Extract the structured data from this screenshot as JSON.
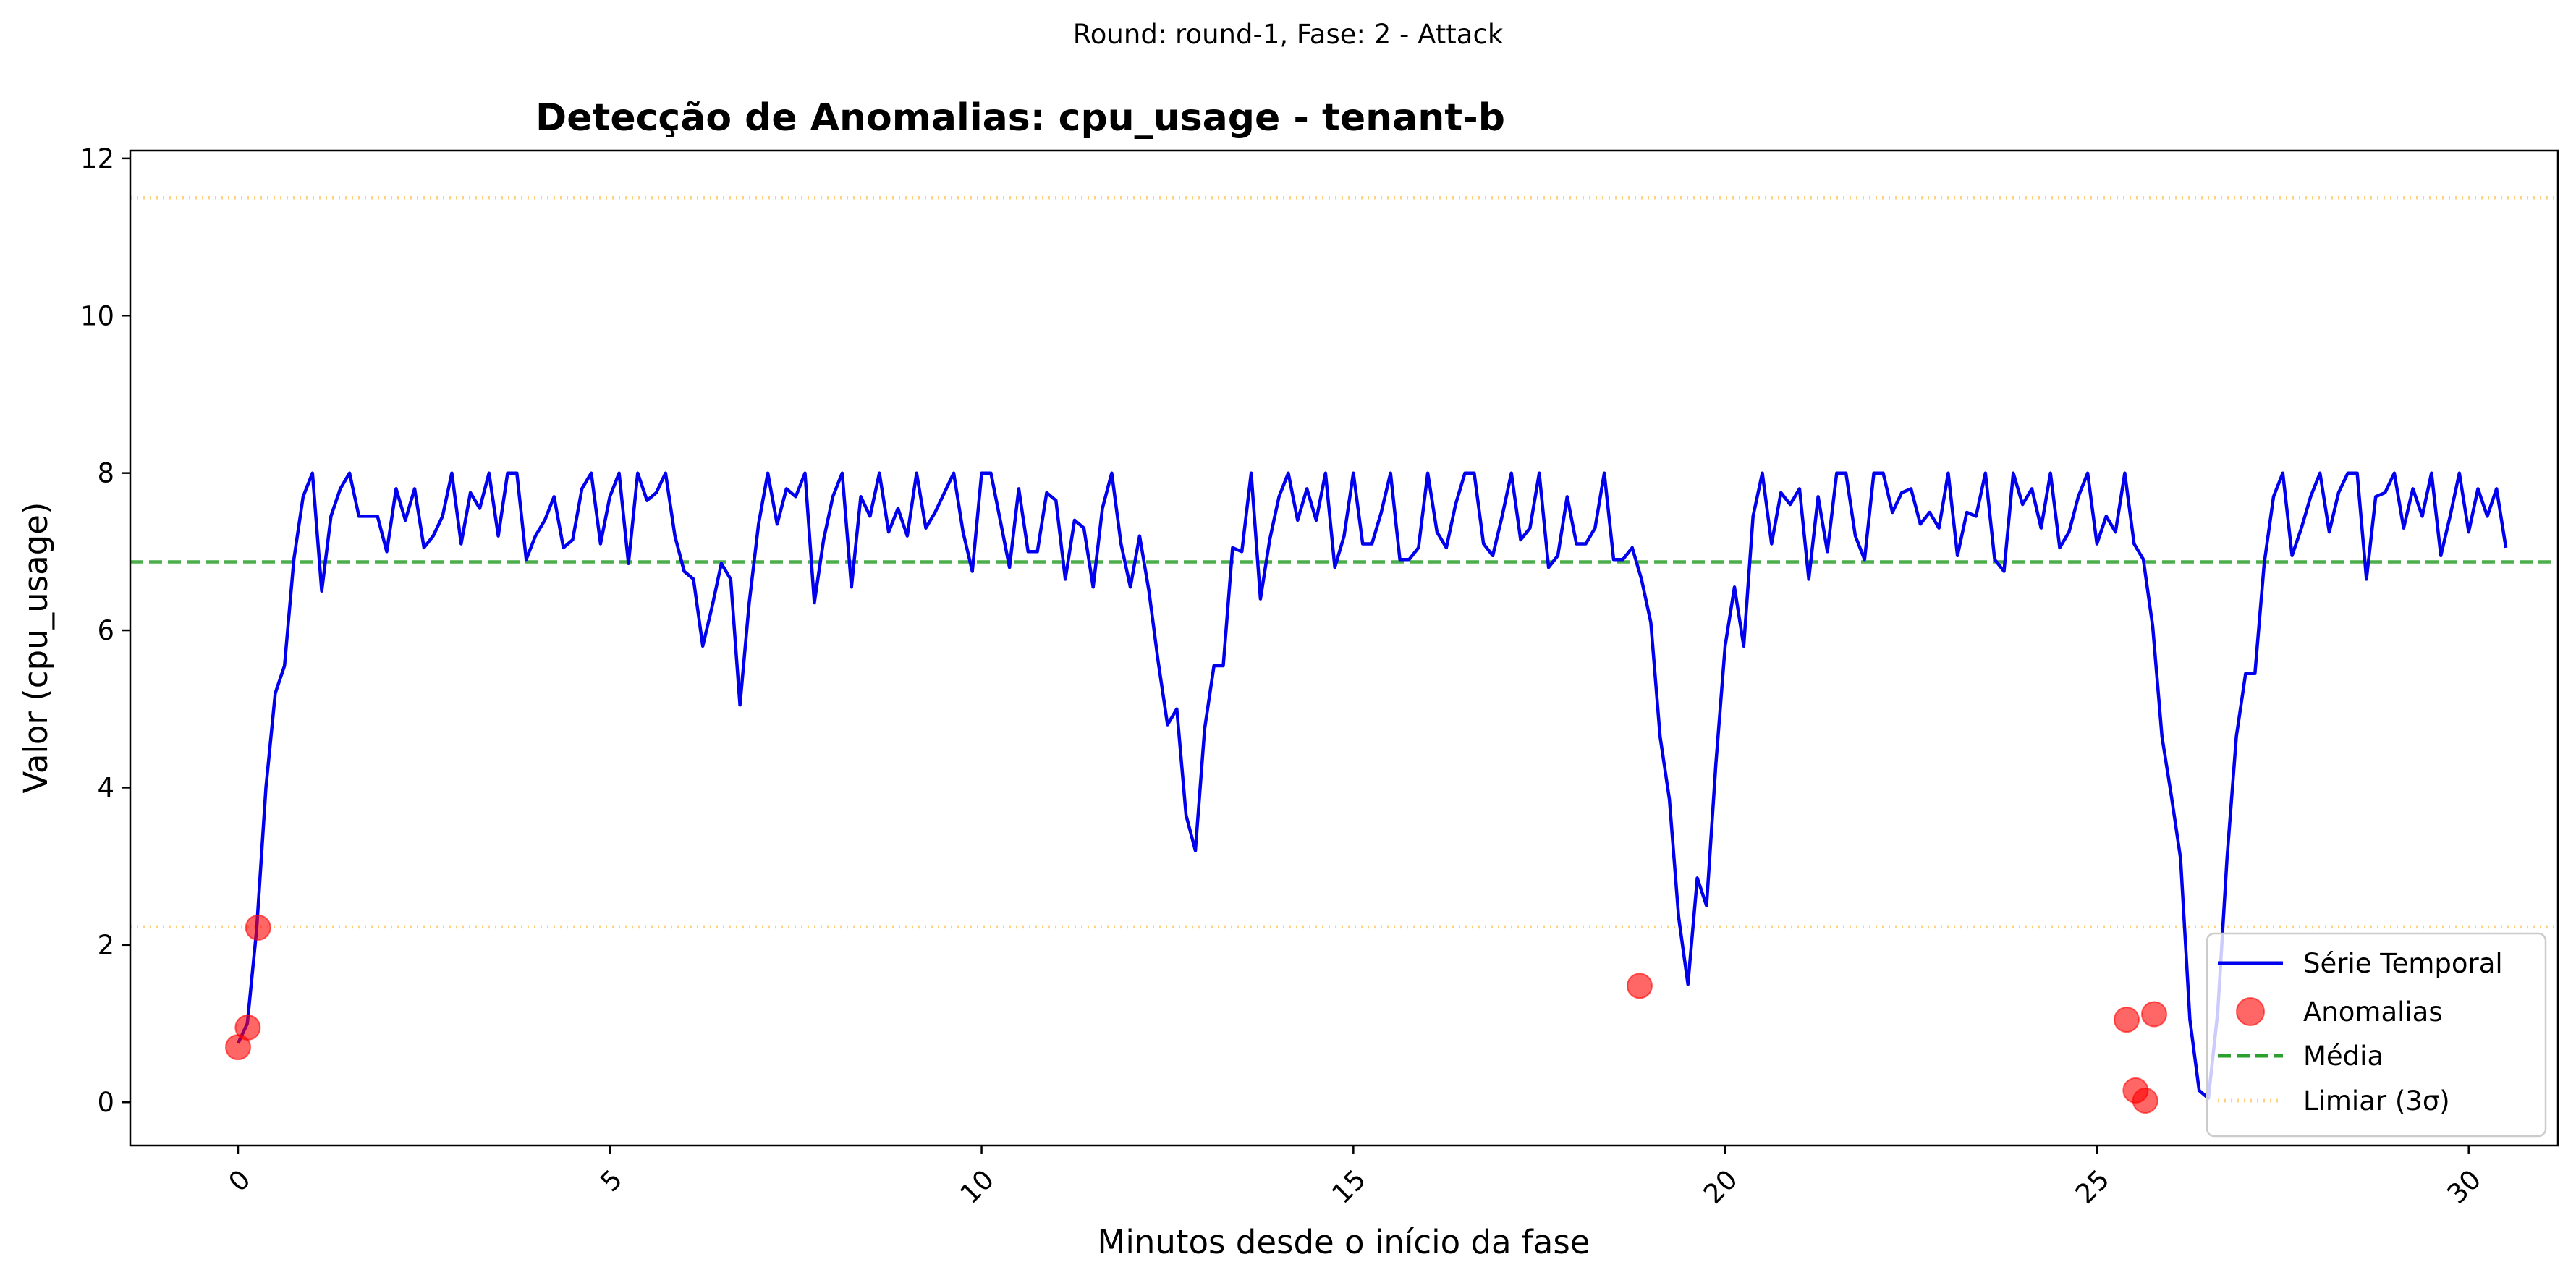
{
  "suptitle": "Round: round-1, Fase: 2 - Attack",
  "chart_data": {
    "type": "line",
    "title": "Detecção de Anomalias: cpu_usage - tenant-b",
    "xlabel": "Minutos desde o início da fase",
    "ylabel": "Valor (cpu_usage)",
    "xlim": [
      -1.45,
      31.2
    ],
    "ylim": [
      -0.55,
      12.1
    ],
    "x_ticks": [
      0,
      5,
      10,
      15,
      20,
      25,
      30
    ],
    "y_ticks": [
      0,
      2,
      4,
      6,
      8,
      10,
      12
    ],
    "legend_position": "lower right",
    "series": [
      {
        "name": "Série Temporal",
        "kind": "line",
        "color": "#0000ee",
        "x_start": 0,
        "x_step": 0.125,
        "values": [
          0.75,
          1.0,
          2.2,
          4.0,
          5.2,
          5.55,
          6.9,
          7.7,
          8.0,
          6.5,
          7.45,
          7.8,
          8.0,
          7.45,
          7.45,
          7.45,
          7.0,
          7.8,
          7.4,
          7.8,
          7.05,
          7.2,
          7.45,
          8.0,
          7.1,
          7.75,
          7.55,
          8.0,
          7.2,
          8.0,
          8.0,
          6.9,
          7.2,
          7.4,
          7.7,
          7.05,
          7.15,
          7.8,
          8.0,
          7.1,
          7.7,
          8.0,
          6.85,
          8.0,
          7.65,
          7.75,
          8.0,
          7.2,
          6.75,
          6.65,
          5.8,
          6.3,
          6.85,
          6.65,
          5.05,
          6.35,
          7.35,
          8.0,
          7.35,
          7.8,
          7.7,
          8.0,
          6.35,
          7.15,
          7.7,
          8.0,
          6.55,
          7.7,
          7.45,
          8.0,
          7.25,
          7.55,
          7.2,
          8.0,
          7.3,
          7.5,
          7.75,
          8.0,
          7.25,
          6.75,
          8.0,
          8.0,
          7.4,
          6.8,
          7.8,
          7.0,
          7.0,
          7.75,
          7.65,
          6.65,
          7.4,
          7.3,
          6.55,
          7.55,
          8.0,
          7.1,
          6.55,
          7.2,
          6.5,
          5.6,
          4.8,
          5.0,
          3.65,
          3.2,
          4.75,
          5.55,
          5.55,
          7.05,
          7.0,
          8.0,
          6.4,
          7.15,
          7.7,
          8.0,
          7.4,
          7.8,
          7.4,
          8.0,
          6.8,
          7.2,
          8.0,
          7.1,
          7.1,
          7.5,
          8.0,
          6.9,
          6.9,
          7.05,
          8.0,
          7.25,
          7.05,
          7.6,
          8.0,
          8.0,
          7.1,
          6.95,
          7.45,
          8.0,
          7.15,
          7.3,
          8.0,
          6.8,
          6.95,
          7.7,
          7.1,
          7.1,
          7.3,
          8.0,
          6.9,
          6.9,
          7.05,
          6.65,
          6.1,
          4.65,
          3.85,
          2.35,
          1.5,
          2.85,
          2.5,
          4.3,
          5.8,
          6.55,
          5.8,
          7.45,
          8.0,
          7.1,
          7.75,
          7.6,
          7.8,
          6.65,
          7.7,
          7.0,
          8.0,
          8.0,
          7.2,
          6.9,
          8.0,
          8.0,
          7.5,
          7.75,
          7.8,
          7.35,
          7.5,
          7.3,
          8.0,
          6.95,
          7.5,
          7.45,
          8.0,
          6.9,
          6.75,
          8.0,
          7.6,
          7.8,
          7.3,
          8.0,
          7.05,
          7.25,
          7.7,
          8.0,
          7.1,
          7.45,
          7.25,
          8.0,
          7.1,
          6.9,
          6.05,
          4.65,
          3.9,
          3.1,
          1.05,
          0.15,
          0.05,
          1.15,
          3.1,
          4.65,
          5.45,
          5.45,
          6.85,
          7.7,
          8.0,
          6.95,
          7.3,
          7.7,
          8.0,
          7.25,
          7.75,
          8.0,
          8.0,
          6.65,
          7.7,
          7.75,
          8.0,
          7.3,
          7.8,
          7.45,
          8.0,
          6.95,
          7.45,
          8.0,
          7.25,
          7.8,
          7.45,
          7.8,
          7.05
        ]
      },
      {
        "name": "Anomalias",
        "kind": "scatter",
        "color": "#ff0000",
        "points": [
          {
            "x": 0.0,
            "y": 0.7
          },
          {
            "x": 0.13,
            "y": 0.95
          },
          {
            "x": 0.27,
            "y": 2.22
          },
          {
            "x": 18.85,
            "y": 1.48
          },
          {
            "x": 25.4,
            "y": 1.05
          },
          {
            "x": 25.52,
            "y": 0.15
          },
          {
            "x": 25.65,
            "y": 0.02
          },
          {
            "x": 25.77,
            "y": 1.12
          }
        ]
      },
      {
        "name": "Média",
        "kind": "hline",
        "color": "#2ca02c",
        "y": 6.87
      },
      {
        "name": "Limiar (3σ)",
        "kind": "hlines",
        "color": "#ffa500",
        "y_values": [
          11.5,
          2.23
        ]
      }
    ]
  }
}
